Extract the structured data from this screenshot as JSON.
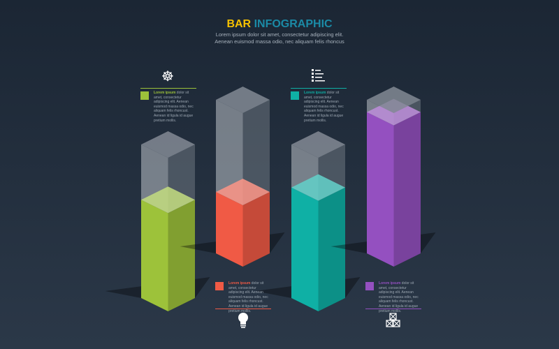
{
  "title": {
    "part1": "BAR",
    "part2": "INFOGRAPHIC",
    "subtitle_line1": "Lorem ipsum dolor sit amet, consectetur adipiscing elit.",
    "subtitle_line2": "Aenean euismod massa odio, nec aliquam felis rhoncus"
  },
  "items": [
    {
      "color": "#9dc23a",
      "fill_level": 0.64,
      "icon": "ship-wheel-icon",
      "highlight": "Lorem ipsum",
      "text": " dolor sit amet, consectetur adipiscing elit. Aenean euismod massa odio, nec aliquam felis rhoncust. Aenean id ligula id augue pretium mollis."
    },
    {
      "color": "#f05a45",
      "fill_level": 0.4,
      "icon": "lightbulb-icon",
      "highlight": "Lorem ipsum",
      "text": " dolor sit amet, consectetur adipiscing elit. Aenean euismod massa odio, nec aliquam felis rhoncust. Aenean id ligula id augue pretium mollis."
    },
    {
      "color": "#0fb0a5",
      "fill_level": 0.72,
      "icon": "list-icon",
      "highlight": "Lorem ipsum",
      "text": " dolor sit amet, consectetur adipiscing elit. Aenean euismod massa odio, nec aliquam felis rhoncust. Aenean id ligula id augue pretium mollis."
    },
    {
      "color": "#9450c0",
      "fill_level": 0.92,
      "icon": "boxes-icon",
      "highlight": "Lorem ipsum",
      "text": " dolor sit amet, consectetur adipiscing elit. Aenean euismod massa odio, nec aliquam felis rhoncust. Aenean id ligula id augue pretium mollis."
    }
  ]
}
